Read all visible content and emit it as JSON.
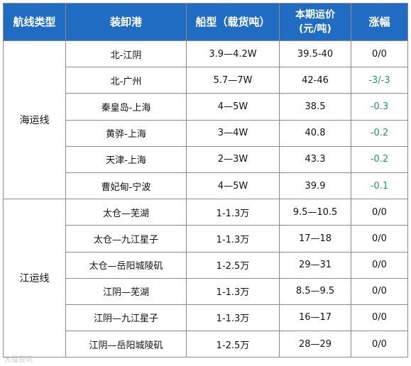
{
  "header": {
    "route_type": "航线类型",
    "port": "装卸港",
    "ship_type": "船型（载货吨）",
    "rate_line1": "本期运价",
    "rate_line2": "(元/吨)",
    "change": "涨幅"
  },
  "groups": [
    {
      "label": "海运线",
      "rows": [
        {
          "port": "北-江阴",
          "ship": "3.9—4.2W",
          "rate": "39.5-40",
          "change": "0/0",
          "trend": "flat"
        },
        {
          "port": "北-广州",
          "ship": "5.7—7W",
          "rate": "42-46",
          "change": "-3/-3",
          "trend": "neg"
        },
        {
          "port": "秦皇岛-上海",
          "ship": "4—5W",
          "rate": "38.5",
          "change": "-0.3",
          "trend": "neg"
        },
        {
          "port": "黄骅-上海",
          "ship": "3—4W",
          "rate": "40.8",
          "change": "-0.2",
          "trend": "neg"
        },
        {
          "port": "天津-上海",
          "ship": "2—3W",
          "rate": "43.3",
          "change": "-0.2",
          "trend": "neg"
        },
        {
          "port": "曹妃甸-宁波",
          "ship": "4—5W",
          "rate": "39.9",
          "change": "-0.1",
          "trend": "neg"
        }
      ]
    },
    {
      "label": "江运线",
      "rows": [
        {
          "port": "太仓—芜湖",
          "ship": "1-1.3万",
          "rate": "9.5—10.5",
          "change": "0/0",
          "trend": "flat"
        },
        {
          "port": "太仓—九江星子",
          "ship": "1-1.3万",
          "rate": "17—18",
          "change": "0/0",
          "trend": "flat"
        },
        {
          "port": "太仓—岳阳城陵矶",
          "ship": "1-2.5万",
          "rate": "29—31",
          "change": "0/0",
          "trend": "flat"
        },
        {
          "port": "江阴—芜湖",
          "ship": "1-1.3万",
          "rate": "8.5—9.5",
          "change": "0/0",
          "trend": "flat"
        },
        {
          "port": "江阴—九江星子",
          "ship": "1-1.3万",
          "rate": "16—17",
          "change": "0/0",
          "trend": "flat"
        },
        {
          "port": "江阴—岳阳城陵矶",
          "ship": "1-2.5万",
          "rate": "28—29",
          "change": "0/0",
          "trend": "flat"
        }
      ]
    }
  ],
  "colors": {
    "header_bg": "#1f6cc2",
    "header_text": "#ffffff",
    "negative_change": "#1e9a63",
    "grid": "#8c8c8c"
  },
  "watermark": "大盘资讯"
}
